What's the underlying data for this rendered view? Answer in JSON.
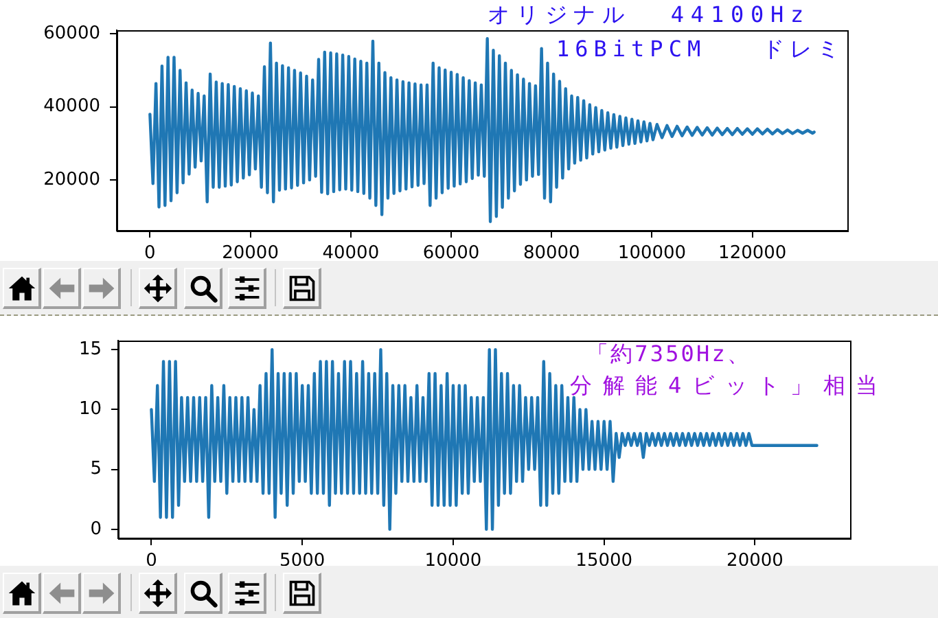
{
  "chart_data": [
    {
      "type": "line",
      "annotations": [
        "オリジナル  44100Hz",
        "16BitPCM   ドレミ"
      ],
      "color": "#1f77b4",
      "x": [
        0,
        600,
        1200,
        1800,
        2400,
        3000,
        3600,
        4200,
        4800,
        5400,
        6000,
        6600,
        7200,
        7800,
        8400,
        9000,
        9600,
        10200,
        10800,
        11400,
        12000,
        12600,
        13200,
        13800,
        14400,
        15000,
        15600,
        16200,
        16800,
        17400,
        18000,
        18600,
        19200,
        19800,
        20400,
        21000,
        21600,
        22200,
        22800,
        23400,
        24000,
        24600,
        25200,
        25800,
        26400,
        27000,
        27600,
        28200,
        28800,
        29400,
        30000,
        30600,
        31200,
        31800,
        32400,
        33000,
        33600,
        34200,
        34800,
        35400,
        36000,
        36600,
        37200,
        37800,
        38400,
        39000,
        39600,
        40200,
        40800,
        41400,
        42000,
        42600,
        43200,
        43800,
        44400,
        45000,
        45600,
        46200,
        46800,
        47400,
        48000,
        48600,
        49200,
        49800,
        50400,
        51000,
        51600,
        52200,
        52800,
        53400,
        54000,
        54600,
        55200,
        55800,
        56400,
        57000,
        57600,
        58200,
        58800,
        59400,
        60000,
        60600,
        61200,
        61800,
        62400,
        63000,
        63600,
        64200,
        64800,
        65400,
        66000,
        66600,
        67200,
        67800,
        68400,
        69000,
        69600,
        70200,
        70800,
        71400,
        72000,
        72600,
        73200,
        73800,
        74400,
        75000,
        75600,
        76200,
        76800,
        77400,
        78000,
        78600,
        79200,
        79800,
        80400,
        81000,
        81600,
        82200,
        82800,
        83400,
        84000,
        84600,
        85200,
        85800,
        86400,
        87000,
        87600,
        88200,
        88800,
        89400,
        90000,
        90600,
        91200,
        91800,
        92400,
        93000,
        93600,
        94200,
        94800,
        95400,
        96000,
        96600,
        97200,
        97800,
        98400,
        99000,
        99600,
        100200,
        101000,
        102000,
        103000,
        104000,
        105000,
        106000,
        107000,
        108000,
        109000,
        110000,
        111000,
        112000,
        113000,
        114000,
        115000,
        116000,
        117000,
        118000,
        119000,
        120000,
        121000,
        122000,
        123000,
        124000,
        125000,
        126000,
        127000,
        128000,
        129000,
        130000,
        131000,
        132000,
        132300
      ],
      "values": [
        38000,
        19000,
        46400,
        12600,
        51200,
        13000,
        53600,
        14300,
        53600,
        16500,
        50000,
        19200,
        46600,
        21600,
        44600,
        23500,
        43700,
        25200,
        43000,
        14000,
        49000,
        18000,
        46800,
        18000,
        46400,
        18300,
        46100,
        18600,
        45600,
        19500,
        45000,
        20500,
        44400,
        21400,
        43800,
        23000,
        43000,
        18000,
        51000,
        16500,
        57500,
        14000,
        52000,
        17200,
        51300,
        17500,
        50700,
        17800,
        50000,
        18500,
        49300,
        19200,
        48400,
        20000,
        47400,
        21000,
        53000,
        16600,
        55000,
        16200,
        54800,
        16800,
        54500,
        17300,
        54200,
        17500,
        53800,
        17200,
        53100,
        16800,
        52500,
        16300,
        52000,
        15000,
        58000,
        13000,
        52000,
        10500,
        49400,
        15000,
        48000,
        16300,
        47400,
        17000,
        46900,
        17500,
        46600,
        18100,
        46300,
        18500,
        46000,
        19000,
        46000,
        13000,
        52000,
        15000,
        50700,
        16500,
        50100,
        17700,
        49500,
        18300,
        48900,
        18900,
        48000,
        19500,
        47200,
        20400,
        46600,
        21300,
        46000,
        21000,
        58700,
        8600,
        55500,
        10000,
        54000,
        12500,
        52000,
        15000,
        50000,
        17000,
        48800,
        18800,
        47600,
        20000,
        46400,
        21000,
        45800,
        21500,
        56000,
        15000,
        52000,
        14000,
        49000,
        18000,
        47000,
        20500,
        45000,
        23000,
        43000,
        24600,
        42600,
        25400,
        41700,
        26000,
        40600,
        27100,
        39800,
        27700,
        39000,
        28200,
        38400,
        28700,
        37900,
        29000,
        37400,
        29400,
        37000,
        29800,
        36600,
        30000,
        36200,
        30400,
        35900,
        30700,
        35500,
        31000,
        35200,
        31600,
        34900,
        31900,
        34700,
        32100,
        34500,
        32200,
        34400,
        32300,
        34300,
        32300,
        34200,
        32400,
        34100,
        32400,
        34100,
        32500,
        34000,
        32500,
        34000,
        32600,
        33900,
        32600,
        33800,
        32700,
        33700,
        32700,
        33600,
        32800,
        33600,
        32800,
        33100
      ],
      "xlim": [
        -6615,
        138915
      ],
      "xticks": [
        0,
        20000,
        40000,
        60000,
        80000,
        100000,
        120000
      ],
      "ylim": [
        6100,
        61000
      ],
      "yticks": [
        20000,
        40000,
        60000
      ],
      "grid": false
    },
    {
      "type": "line",
      "annotations": [
        "「約7350Hz、",
        "分解能4ビット」相当"
      ],
      "color": "#1f77b4",
      "x": [
        0,
        100,
        200,
        300,
        400,
        500,
        600,
        700,
        800,
        900,
        1000,
        1100,
        1200,
        1300,
        1400,
        1500,
        1600,
        1700,
        1800,
        1900,
        2000,
        2100,
        2200,
        2300,
        2400,
        2500,
        2600,
        2700,
        2800,
        2900,
        3000,
        3100,
        3200,
        3300,
        3400,
        3500,
        3600,
        3700,
        3800,
        3900,
        4000,
        4100,
        4200,
        4300,
        4400,
        4500,
        4600,
        4700,
        4800,
        4900,
        5000,
        5100,
        5200,
        5300,
        5400,
        5500,
        5600,
        5700,
        5800,
        5900,
        6000,
        6100,
        6200,
        6300,
        6400,
        6500,
        6600,
        6700,
        6800,
        6900,
        7000,
        7100,
        7200,
        7300,
        7400,
        7500,
        7600,
        7700,
        7800,
        7900,
        8000,
        8100,
        8200,
        8300,
        8400,
        8500,
        8600,
        8700,
        8800,
        8900,
        9000,
        9100,
        9200,
        9300,
        9400,
        9500,
        9600,
        9700,
        9800,
        9900,
        10000,
        10100,
        10200,
        10300,
        10400,
        10500,
        10600,
        10700,
        10800,
        10900,
        11000,
        11100,
        11200,
        11300,
        11400,
        11500,
        11600,
        11700,
        11800,
        11900,
        12000,
        12100,
        12200,
        12300,
        12400,
        12500,
        12600,
        12700,
        12800,
        12900,
        13000,
        13100,
        13200,
        13300,
        13400,
        13500,
        13600,
        13700,
        13800,
        13900,
        14000,
        14100,
        14200,
        14300,
        14400,
        14500,
        14600,
        14700,
        14800,
        14900,
        15000,
        15100,
        15200,
        15300,
        15400,
        15500,
        15600,
        15700,
        15800,
        15900,
        16000,
        16100,
        16200,
        16300,
        16400,
        16500,
        16600,
        16700,
        16800,
        16900,
        17000,
        17100,
        17200,
        17300,
        17400,
        17500,
        17600,
        17700,
        17800,
        17900,
        18000,
        18100,
        18200,
        18300,
        18400,
        18500,
        18600,
        18700,
        18800,
        18900,
        19000,
        19100,
        19200,
        19300,
        19400,
        19500,
        19600,
        19700,
        19800,
        19900,
        22050
      ],
      "values": [
        10,
        4,
        12,
        1,
        14,
        1,
        14,
        1,
        14,
        2,
        11,
        4,
        11,
        4,
        11,
        4,
        11,
        4,
        11,
        1,
        12,
        4,
        11,
        4,
        12,
        3,
        11,
        4,
        11,
        4,
        11,
        4,
        11,
        4,
        10,
        4,
        12,
        3,
        13,
        3,
        15,
        1,
        13,
        3,
        13,
        2,
        13,
        3,
        13,
        4,
        12,
        4,
        12,
        3,
        13,
        3,
        14,
        3,
        14,
        2,
        14,
        3,
        13,
        3,
        14,
        3,
        14,
        3,
        13,
        3,
        14,
        3,
        13,
        3,
        13,
        3,
        15,
        2,
        13,
        0,
        12,
        3,
        12,
        4,
        12,
        4,
        11,
        4,
        12,
        4,
        11,
        4,
        13,
        2,
        13,
        2,
        12,
        2,
        13,
        2,
        12,
        2,
        12,
        3,
        12,
        3,
        11,
        4,
        11,
        4,
        11,
        0,
        15,
        0,
        15,
        2,
        13,
        3,
        13,
        3,
        12,
        4,
        12,
        4,
        11,
        5,
        11,
        5,
        11,
        2,
        14,
        2,
        13,
        3,
        12,
        3,
        12,
        4,
        11,
        4,
        11,
        4,
        10,
        5,
        10,
        5,
        9,
        5,
        9,
        5,
        9,
        5,
        9,
        4,
        8,
        6,
        8,
        7,
        8,
        7,
        8,
        7,
        8,
        6,
        8,
        7,
        8,
        7,
        8,
        7,
        8,
        7,
        8,
        7,
        8,
        7,
        8,
        7,
        8,
        7,
        8,
        7,
        8,
        7,
        8,
        7,
        8,
        7,
        8,
        7,
        8,
        7,
        8,
        7,
        8,
        7,
        8,
        7,
        8,
        7,
        7
      ],
      "xlim": [
        -1102.5,
        23152.5
      ],
      "xticks": [
        0,
        5000,
        10000,
        15000,
        20000
      ],
      "ylim": [
        -0.75,
        15.75
      ],
      "yticks": [
        0,
        5,
        10,
        15
      ],
      "grid": false
    }
  ]
}
